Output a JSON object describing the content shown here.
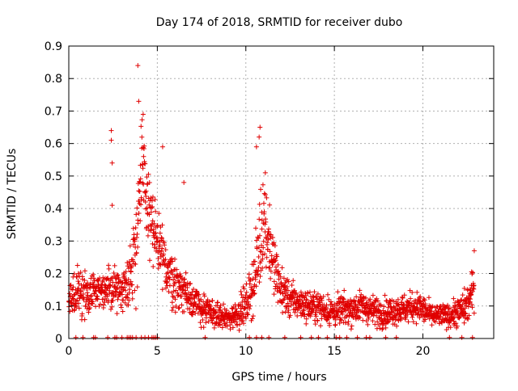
{
  "chart_data": {
    "type": "scatter",
    "title": "Day 174 of 2018, SRMTID for receiver dubo",
    "xlabel": "GPS time / hours",
    "ylabel": "SRMTID / TECUs",
    "xlim": [
      0,
      24
    ],
    "ylim": [
      0,
      0.9
    ],
    "x_ticks": [
      "0",
      "5",
      "10",
      "15",
      "20"
    ],
    "x_tick_values": [
      0,
      5,
      10,
      15,
      20
    ],
    "y_ticks": [
      "0",
      "0.1",
      "0.2",
      "0.3",
      "0.4",
      "0.5",
      "0.6",
      "0.7",
      "0.8",
      "0.9"
    ],
    "y_tick_values": [
      0,
      0.1,
      0.2,
      0.3,
      0.4,
      0.5,
      0.6,
      0.7,
      0.8,
      0.9
    ],
    "grid": true,
    "marker": "+",
    "color": "#e00000",
    "series": [
      {
        "name": "SRMTID",
        "envelope_note": "dense point cloud; values summarized as (x hours, typical y, spread)",
        "x": [
          0.0,
          0.5,
          1.0,
          1.5,
          2.0,
          2.5,
          3.0,
          3.5,
          3.8,
          4.0,
          4.2,
          4.5,
          5.0,
          5.5,
          6.0,
          6.5,
          7.0,
          7.5,
          8.0,
          8.5,
          9.0,
          9.5,
          10.0,
          10.5,
          10.8,
          11.0,
          11.3,
          11.6,
          12.0,
          12.5,
          13.0,
          13.5,
          14.0,
          14.5,
          15.0,
          15.5,
          16.0,
          16.5,
          17.0,
          17.5,
          18.0,
          18.5,
          19.0,
          19.5,
          20.0,
          20.5,
          21.0,
          21.5,
          22.0,
          22.5,
          22.9
        ],
        "y": [
          0.1,
          0.15,
          0.12,
          0.17,
          0.14,
          0.16,
          0.15,
          0.2,
          0.3,
          0.45,
          0.5,
          0.4,
          0.28,
          0.22,
          0.17,
          0.15,
          0.12,
          0.09,
          0.08,
          0.07,
          0.06,
          0.08,
          0.1,
          0.18,
          0.3,
          0.38,
          0.3,
          0.22,
          0.15,
          0.12,
          0.11,
          0.1,
          0.1,
          0.09,
          0.08,
          0.09,
          0.09,
          0.1,
          0.09,
          0.08,
          0.08,
          0.09,
          0.09,
          0.1,
          0.09,
          0.07,
          0.07,
          0.07,
          0.08,
          0.1,
          0.16
        ],
        "spread": [
          0.05,
          0.06,
          0.06,
          0.06,
          0.05,
          0.06,
          0.05,
          0.07,
          0.15,
          0.18,
          0.15,
          0.12,
          0.1,
          0.08,
          0.07,
          0.06,
          0.05,
          0.04,
          0.04,
          0.03,
          0.03,
          0.04,
          0.05,
          0.08,
          0.15,
          0.12,
          0.1,
          0.08,
          0.06,
          0.05,
          0.04,
          0.04,
          0.04,
          0.04,
          0.04,
          0.04,
          0.04,
          0.04,
          0.04,
          0.04,
          0.04,
          0.04,
          0.04,
          0.04,
          0.04,
          0.03,
          0.03,
          0.03,
          0.04,
          0.05,
          0.06
        ]
      }
    ],
    "notable_points": [
      {
        "x": 3.9,
        "y": 0.84
      },
      {
        "x": 3.95,
        "y": 0.73
      },
      {
        "x": 4.2,
        "y": 0.69
      },
      {
        "x": 2.4,
        "y": 0.64
      },
      {
        "x": 2.4,
        "y": 0.61
      },
      {
        "x": 2.45,
        "y": 0.54
      },
      {
        "x": 2.45,
        "y": 0.41
      },
      {
        "x": 5.3,
        "y": 0.59
      },
      {
        "x": 10.8,
        "y": 0.65
      },
      {
        "x": 10.75,
        "y": 0.62
      },
      {
        "x": 10.6,
        "y": 0.59
      },
      {
        "x": 11.1,
        "y": 0.51
      },
      {
        "x": 6.5,
        "y": 0.48
      },
      {
        "x": 22.9,
        "y": 0.27
      }
    ],
    "zero_points_x": [
      0.4,
      0.8,
      1.4,
      1.5,
      2.2,
      2.6,
      2.7,
      3.0,
      3.3,
      3.4,
      3.5,
      3.6,
      3.8,
      4.1,
      4.3,
      4.5,
      4.7,
      4.8,
      4.9,
      5.0,
      7.7,
      10.2,
      10.6,
      10.9,
      11.3,
      12.2,
      13.1,
      13.7,
      14.1,
      14.6,
      15.1,
      15.3,
      15.7,
      16.3,
      16.8,
      17.0,
      17.9,
      18.5,
      21.5,
      22.2,
      22.8
    ]
  }
}
